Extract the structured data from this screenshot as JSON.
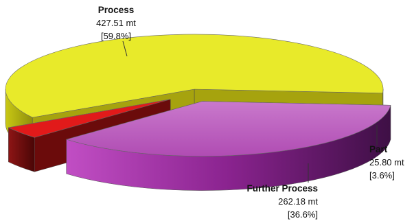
{
  "chart_data": {
    "type": "pie",
    "title": "",
    "style": "3d-exploded",
    "slices": [
      {
        "name": "Process",
        "value": 427.51,
        "unit": "mt",
        "value_label": "427.51 mt",
        "percent_label": "[59.8%]",
        "color": "#e8ea2a"
      },
      {
        "name": "Further Process",
        "value": 262.18,
        "unit": "mt",
        "value_label": "262.18 mt",
        "percent_label": "[36.6%]",
        "color": "#b34fb5"
      },
      {
        "name": "Part",
        "value": 25.8,
        "unit": "mt",
        "value_label": "25.80 mt",
        "percent_label": "[3.6%]",
        "color": "#e11a1a"
      }
    ]
  }
}
